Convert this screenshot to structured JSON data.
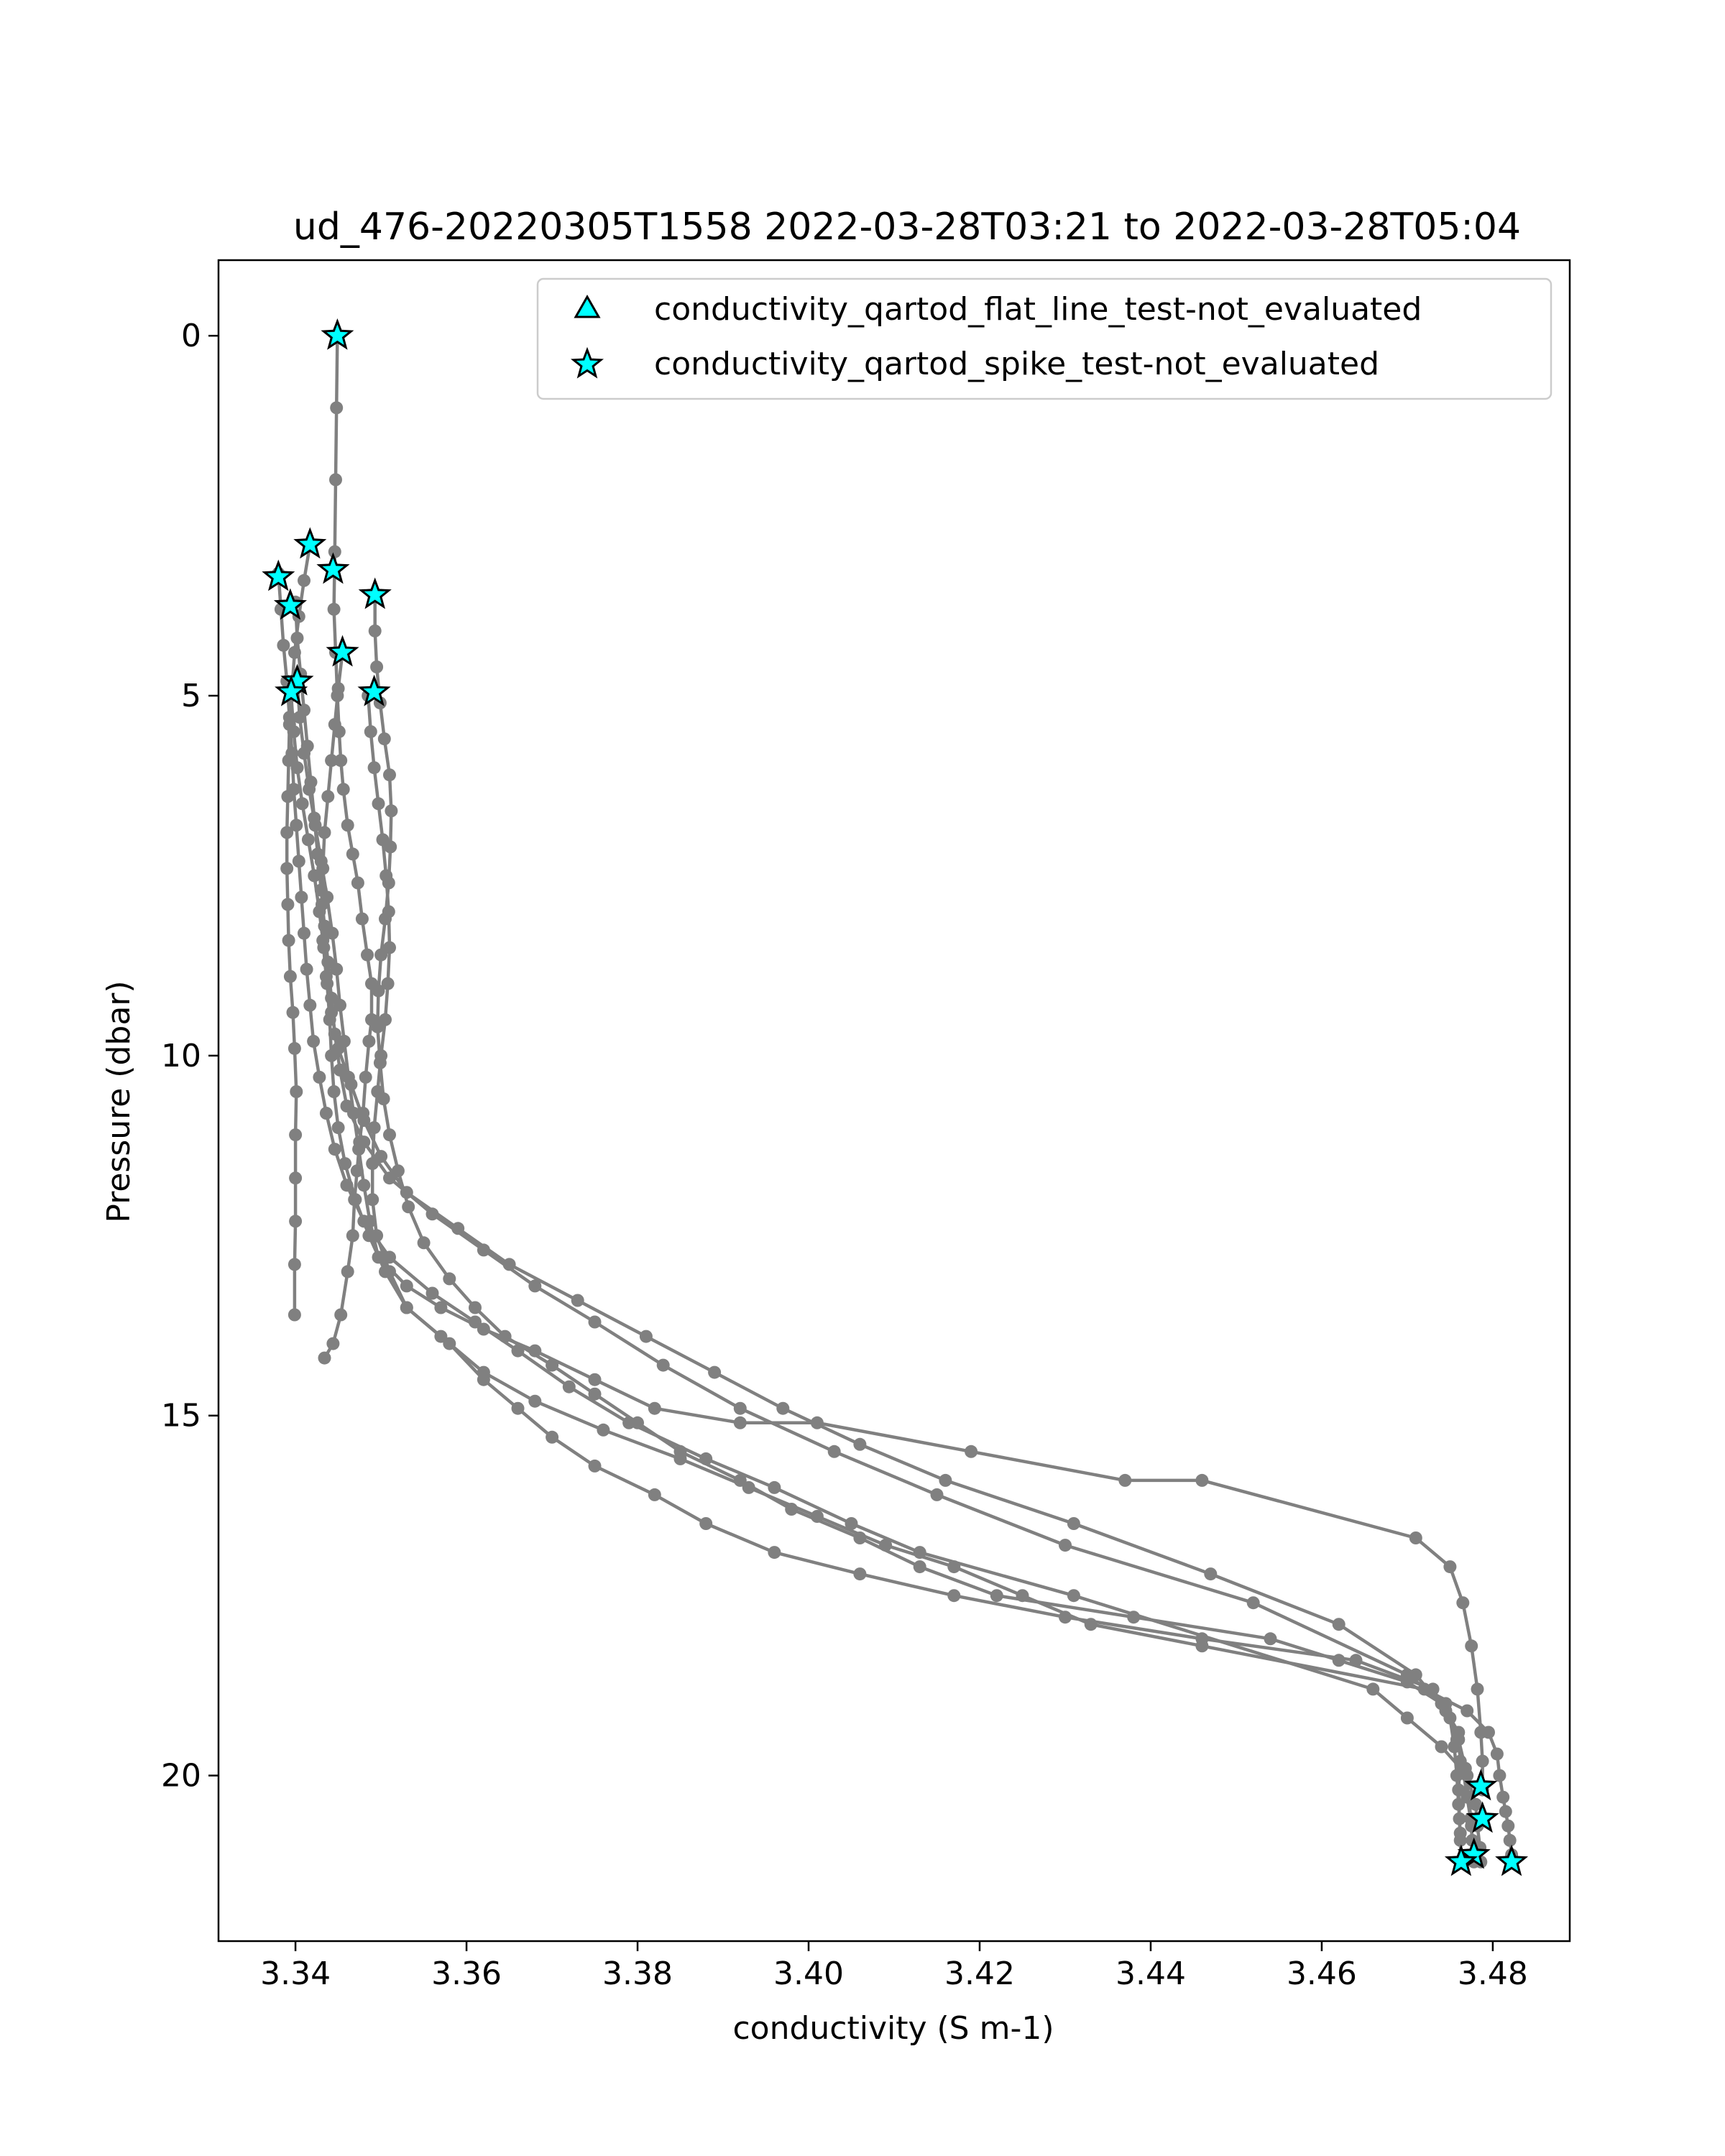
{
  "chart_data": {
    "type": "line",
    "title": "ud_476-20220305T1558 2022-03-28T03:21 to 2022-03-28T05:04",
    "xlabel": "conductivity (S m-1)",
    "ylabel": "Pressure (dbar)",
    "xlim": [
      3.331,
      3.489
    ],
    "ylim": [
      22.3,
      -1.05
    ],
    "y_inverted": true,
    "grid": false,
    "xticks": [
      3.34,
      3.36,
      3.38,
      3.4,
      3.42,
      3.44,
      3.46,
      3.48
    ],
    "xtick_labels": [
      "3.34",
      "3.36",
      "3.38",
      "3.40",
      "3.42",
      "3.44",
      "3.46",
      "3.48"
    ],
    "yticks": [
      0,
      5,
      10,
      15,
      20
    ],
    "ytick_labels": [
      "0",
      "5",
      "10",
      "15",
      "20"
    ],
    "line_color": "#808080",
    "marker_fill": "#00ffff",
    "marker_edge": "#000000",
    "legend": {
      "position": "upper right",
      "entries": [
        {
          "label": "conductivity_qartod_flat_line_test-not_evaluated",
          "marker": "triangle"
        },
        {
          "label": "conductivity_qartod_spike_test-not_evaluated",
          "marker": "star"
        }
      ]
    },
    "profiles": [
      {
        "x": [
          3.3449,
          3.3448,
          3.3447,
          3.3446,
          3.3445,
          3.3447,
          3.3449,
          3.3451,
          3.3453,
          3.3456,
          3.3461,
          3.3467,
          3.3473,
          3.3478,
          3.3484,
          3.3489,
          3.3489,
          3.3486,
          3.3482,
          3.3479,
          3.3475,
          3.3472,
          3.3469,
          3.3467,
          3.3461,
          3.3453,
          3.3444,
          3.3434
        ],
        "y": [
          0.0,
          1.0,
          2.0,
          3.0,
          3.8,
          4.4,
          5.0,
          5.5,
          5.9,
          6.3,
          6.8,
          7.2,
          7.6,
          8.1,
          8.6,
          9.0,
          9.5,
          9.8,
          10.3,
          10.8,
          11.2,
          11.6,
          12.0,
          12.5,
          13.0,
          13.6,
          14.0,
          14.2
        ]
      },
      {
        "x": [
          3.3417,
          3.341,
          3.3404,
          3.3399,
          3.3396,
          3.3393,
          3.3392,
          3.3391,
          3.339,
          3.339,
          3.3391,
          3.3392,
          3.3394,
          3.3397,
          3.3399,
          3.3401,
          3.34,
          3.34,
          3.34,
          3.3399,
          3.3399
        ],
        "y": [
          2.9,
          3.4,
          3.9,
          4.4,
          4.9,
          5.4,
          5.9,
          6.4,
          6.9,
          7.4,
          7.9,
          8.4,
          8.9,
          9.4,
          9.9,
          10.5,
          11.1,
          11.7,
          12.3,
          12.9,
          13.6
        ]
      },
      {
        "x": [
          3.3493,
          3.3493,
          3.3495,
          3.3499,
          3.3504,
          3.351,
          3.3512,
          3.3511,
          3.3509,
          3.3505,
          3.35,
          3.3497,
          3.3496,
          3.3499,
          3.3503,
          3.351,
          3.352,
          3.3532,
          3.355,
          3.358,
          3.361,
          3.3645,
          3.37,
          3.375,
          3.38,
          3.385,
          3.392,
          3.398,
          3.406,
          3.413,
          3.422,
          3.438,
          3.454,
          3.462,
          3.47,
          3.474,
          3.476,
          3.4762,
          3.476,
          3.4761,
          3.4762,
          3.4763
        ],
        "y": [
          3.6,
          4.1,
          4.6,
          5.1,
          5.6,
          6.1,
          6.6,
          7.1,
          7.6,
          8.1,
          8.6,
          9.1,
          9.6,
          10.1,
          10.6,
          11.1,
          11.6,
          12.1,
          12.6,
          13.1,
          13.5,
          13.9,
          14.3,
          14.7,
          15.1,
          15.5,
          15.9,
          16.3,
          16.7,
          17.1,
          17.5,
          17.8,
          18.1,
          18.4,
          18.7,
          19.0,
          19.4,
          19.8,
          20.2,
          20.6,
          20.9,
          21.2
        ]
      },
      {
        "x": [
          3.338,
          3.3383,
          3.3386,
          3.339,
          3.3393,
          3.3396,
          3.3398,
          3.3401,
          3.3404,
          3.3407,
          3.341,
          3.3413,
          3.3417,
          3.3421,
          3.3428,
          3.3436,
          3.3446,
          3.346,
          3.348,
          3.351,
          3.356,
          3.361,
          3.366,
          3.372,
          3.379,
          3.388,
          3.396,
          3.405,
          3.413,
          3.431,
          3.466,
          3.47,
          3.474,
          3.477,
          3.478,
          3.4782,
          3.4785,
          3.4786
        ],
        "y": [
          3.3,
          3.8,
          4.3,
          4.8,
          5.3,
          5.8,
          6.3,
          6.8,
          7.3,
          7.8,
          8.3,
          8.8,
          9.3,
          9.8,
          10.3,
          10.8,
          11.3,
          11.8,
          12.3,
          12.8,
          13.3,
          13.7,
          14.1,
          14.6,
          15.1,
          15.6,
          16.0,
          16.5,
          16.9,
          17.5,
          18.8,
          19.2,
          19.6,
          20.0,
          20.4,
          20.7,
          21.0,
          21.2
        ]
      },
      {
        "x": [
          3.3402,
          3.3405,
          3.341,
          3.3416,
          3.3423,
          3.343,
          3.3437,
          3.3443,
          3.3448,
          3.3452,
          3.3457,
          3.3462,
          3.3468,
          3.3474,
          3.348,
          3.3487,
          3.3497,
          3.353,
          3.357,
          3.362,
          3.368,
          3.375,
          3.382,
          3.392,
          3.401,
          3.419,
          3.437,
          3.446,
          3.471,
          3.475,
          3.4765,
          3.4775,
          3.4782,
          3.4786,
          3.4788,
          3.4788
        ],
        "y": [
          4.8,
          5.3,
          5.8,
          6.3,
          6.8,
          7.3,
          7.8,
          8.3,
          8.8,
          9.3,
          9.8,
          10.3,
          10.8,
          11.3,
          11.8,
          12.3,
          12.8,
          13.2,
          13.5,
          13.8,
          14.1,
          14.5,
          14.9,
          15.1,
          15.1,
          15.5,
          15.9,
          15.9,
          16.7,
          17.1,
          17.6,
          18.2,
          18.8,
          19.4,
          19.8,
          20.2
        ]
      },
      {
        "x": [
          3.3485,
          3.3488,
          3.3492,
          3.3497,
          3.3502,
          3.3506,
          3.3509,
          3.351,
          3.3508,
          3.3505,
          3.35,
          3.3496,
          3.3492,
          3.349,
          3.349,
          3.3495,
          3.351,
          3.353,
          3.357,
          3.362,
          3.368,
          3.376,
          3.385,
          3.393,
          3.401,
          3.409,
          3.417,
          3.425,
          3.433,
          3.446,
          3.472,
          3.477,
          3.4795,
          3.4805,
          3.4808,
          3.4812,
          3.4815,
          3.4818,
          3.482,
          3.4822,
          3.4822
        ],
        "y": [
          5.0,
          5.5,
          6.0,
          6.5,
          7.0,
          7.5,
          8.0,
          8.5,
          9.0,
          9.5,
          10.0,
          10.5,
          11.0,
          11.5,
          12.0,
          12.5,
          13.0,
          13.5,
          13.9,
          14.4,
          14.8,
          15.2,
          15.6,
          16.0,
          16.4,
          16.8,
          17.1,
          17.5,
          17.9,
          18.2,
          18.8,
          19.1,
          19.4,
          19.7,
          20.0,
          20.3,
          20.5,
          20.7,
          20.9,
          21.1,
          21.2
        ]
      },
      {
        "x": [
          3.3395,
          3.3398,
          3.3402,
          3.3408,
          3.3415,
          3.3422,
          3.3428,
          3.3433,
          3.3437,
          3.344,
          3.3442,
          3.3445,
          3.345,
          3.3458,
          3.347,
          3.3486,
          3.3505,
          3.353,
          3.358,
          3.362,
          3.366,
          3.37,
          3.375,
          3.382,
          3.388,
          3.396,
          3.406,
          3.417,
          3.43,
          3.446,
          3.464,
          3.473,
          3.475,
          3.4755,
          3.4758,
          3.476,
          3.4762
        ],
        "y": [
          5.0,
          5.5,
          6.0,
          6.5,
          7.0,
          7.5,
          8.0,
          8.5,
          9.0,
          9.5,
          10.0,
          10.5,
          11.0,
          11.5,
          12.0,
          12.5,
          13.0,
          13.5,
          14.0,
          14.5,
          14.9,
          15.3,
          15.7,
          16.1,
          16.5,
          16.9,
          17.2,
          17.5,
          17.8,
          18.1,
          18.4,
          18.8,
          19.2,
          19.6,
          20.0,
          20.4,
          20.8
        ]
      },
      {
        "x": [
          3.34,
          3.3402,
          3.3406,
          3.341,
          3.3414,
          3.3418,
          3.3422,
          3.3426,
          3.343,
          3.3434,
          3.3438,
          3.3442,
          3.3446,
          3.3452,
          3.346,
          3.348,
          3.351,
          3.356,
          3.362,
          3.368,
          3.375,
          3.383,
          3.392,
          3.403,
          3.415,
          3.43,
          3.452,
          3.47,
          3.4745,
          3.4758,
          3.4765,
          3.477,
          3.4774,
          3.4776,
          3.4778
        ],
        "y": [
          3.7,
          4.2,
          4.7,
          5.2,
          5.7,
          6.2,
          6.7,
          7.2,
          7.7,
          8.2,
          8.7,
          9.2,
          9.7,
          10.2,
          10.7,
          11.2,
          11.7,
          12.2,
          12.7,
          13.2,
          13.7,
          14.3,
          14.9,
          15.5,
          16.1,
          16.8,
          17.6,
          18.6,
          19.0,
          19.5,
          19.9,
          20.3,
          20.6,
          20.9,
          21.2
        ]
      },
      {
        "x": [
          3.3455,
          3.345,
          3.3446,
          3.3442,
          3.3438,
          3.3434,
          3.3432,
          3.3431,
          3.3432,
          3.3436,
          3.3442,
          3.345,
          3.3465,
          3.348,
          3.35,
          3.353,
          3.359,
          3.365,
          3.373,
          3.381,
          3.389,
          3.397,
          3.406,
          3.416,
          3.431,
          3.447,
          3.462,
          3.471,
          3.4745,
          3.476,
          3.4768,
          3.4772,
          3.4775,
          3.4777
        ],
        "y": [
          4.4,
          4.9,
          5.4,
          5.9,
          6.4,
          6.9,
          7.4,
          7.9,
          8.4,
          8.9,
          9.4,
          9.9,
          10.4,
          10.9,
          11.4,
          11.9,
          12.4,
          12.9,
          13.4,
          13.9,
          14.4,
          14.9,
          15.4,
          15.9,
          16.5,
          17.2,
          17.9,
          18.6,
          19.1,
          19.5,
          19.9,
          20.3,
          20.7,
          21.1
        ]
      }
    ],
    "flag_points_spike_test": {
      "x": [
        3.3449,
        3.3417,
        3.3444,
        3.338,
        3.3493,
        3.3394,
        3.3455,
        3.3402,
        3.3395,
        3.3492,
        3.4786,
        3.4788,
        3.4778,
        3.4763,
        3.4822
      ],
      "y": [
        0.0,
        2.9,
        3.25,
        3.35,
        3.6,
        3.75,
        4.4,
        4.8,
        4.95,
        4.95,
        20.15,
        20.6,
        21.1,
        21.2,
        21.2
      ]
    }
  }
}
